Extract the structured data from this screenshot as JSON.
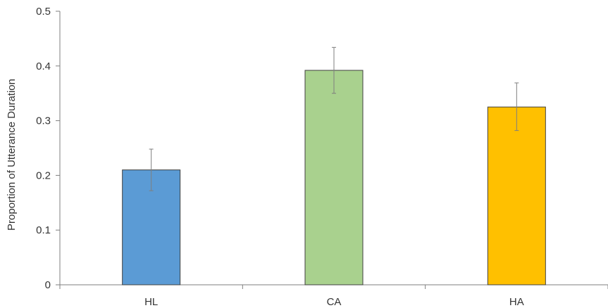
{
  "chart_data": {
    "type": "bar",
    "title": "",
    "xlabel": "",
    "ylabel": "Proportion of Utterance Duration",
    "categories": [
      "HL",
      "CA",
      "HA"
    ],
    "values": [
      0.21,
      0.392,
      0.325
    ],
    "error_low": [
      0.172,
      0.35,
      0.282
    ],
    "error_high": [
      0.248,
      0.434,
      0.369
    ],
    "colors": [
      "#5b9bd5",
      "#a9d18e",
      "#ffc000"
    ],
    "ylim": [
      0,
      0.5
    ],
    "yticks": [
      "0",
      "0.1",
      "0.2",
      "0.3",
      "0.4",
      "0.5"
    ],
    "grid": false,
    "legend": "none"
  }
}
